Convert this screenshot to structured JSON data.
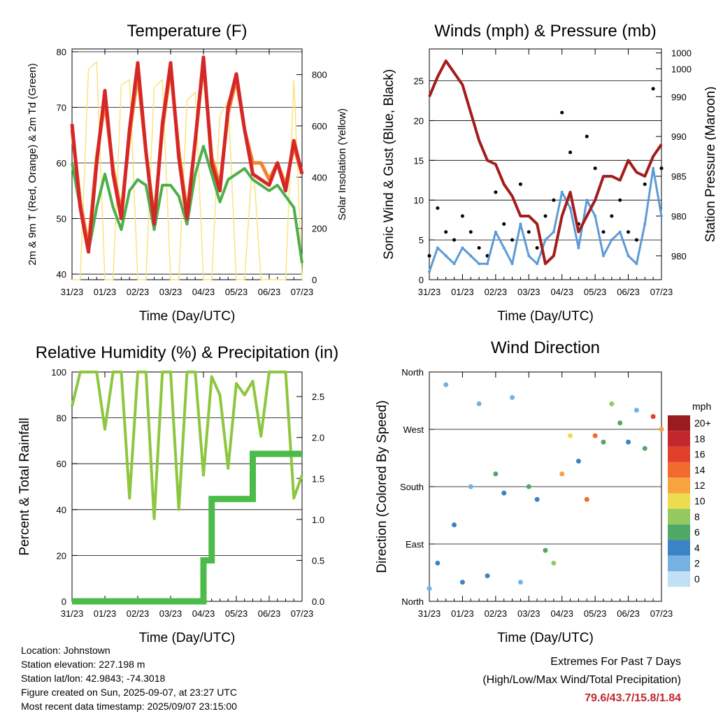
{
  "time_ticks": [
    "31/23",
    "01/23",
    "02/23",
    "03/23",
    "04/23",
    "05/23",
    "06/23",
    "07/23"
  ],
  "xlabel": "Time (Day/UTC)",
  "footer": {
    "location": "Location: Johnstown",
    "elevation": "Station elevation: 227.198 m",
    "latlon": "Station lat/lon: 42.9843; -74.3018",
    "created": "Figure created on Sun, 2025-09-07, at 23:27 UTC",
    "recent": "Most recent data timestamp: 2025/09/07 23:15:00"
  },
  "extremes": {
    "title": "Extremes For Past 7 Days",
    "subtitle": "(High/Low/Max Wind/Total Precipitation)",
    "values": "79.6/43.7/15.8/1.84"
  },
  "colors": {
    "red": "#d62728",
    "orange": "#f5822a",
    "green": "#4daf4a",
    "yellow": "#f7e47a",
    "blue": "#5b9bd5",
    "maroon": "#a31d1d",
    "rh": "#8dc63f",
    "precip": "#4dbb4a"
  },
  "chart_data": [
    {
      "type": "line",
      "title": "Temperature (F)",
      "ylabel": "2m & 9m T (Red, Orange) & 2m Td (Green)",
      "y2label": "Solar Insolation (Yellow)",
      "ylim": [
        39,
        80.5
      ],
      "y2lim": [
        0,
        900
      ],
      "yticks": [
        "40",
        "50",
        "60",
        "70",
        "80"
      ],
      "y2ticks": [
        "0",
        "200",
        "400",
        "600",
        "800"
      ],
      "x": [
        0,
        0.25,
        0.5,
        0.75,
        1,
        1.25,
        1.5,
        1.75,
        2,
        2.25,
        2.5,
        2.75,
        3,
        3.25,
        3.5,
        3.75,
        4,
        4.25,
        4.5,
        4.75,
        5,
        5.25,
        5.5,
        5.75,
        6,
        6.25,
        6.5,
        6.75,
        7
      ],
      "series": [
        {
          "name": "2m T",
          "color": "red",
          "values": [
            67,
            52,
            44,
            60,
            73,
            58,
            50,
            66,
            78,
            62,
            49,
            67,
            78,
            61,
            50,
            64,
            79,
            60,
            55,
            70,
            76,
            66,
            58,
            57,
            56,
            60,
            55,
            64,
            58
          ]
        },
        {
          "name": "9m T",
          "color": "orange",
          "values": [
            66,
            53,
            45,
            61,
            71,
            59,
            51,
            65,
            76,
            62,
            50,
            66,
            77,
            62,
            51,
            64,
            78,
            61,
            56,
            69,
            75,
            66,
            60,
            60,
            57,
            60,
            56,
            63,
            58
          ]
        },
        {
          "name": "2m Td",
          "color": "green",
          "values": [
            60,
            52,
            44,
            52,
            58,
            52,
            48,
            55,
            57,
            56,
            48,
            56,
            56,
            54,
            49,
            58,
            63,
            58,
            53,
            57,
            58,
            59,
            57,
            56,
            55,
            56,
            54,
            52,
            42
          ]
        },
        {
          "name": "Solar",
          "color": "yellow",
          "axis": "y2",
          "values": [
            0,
            0,
            820,
            850,
            0,
            0,
            760,
            780,
            0,
            0,
            750,
            780,
            0,
            0,
            700,
            730,
            0,
            0,
            640,
            700,
            0,
            0,
            480,
            0,
            0,
            0,
            0,
            780,
            0
          ]
        }
      ]
    },
    {
      "type": "scatter",
      "title": "Winds (mph) & Pressure (mb)",
      "ylabel": "Sonic Wind & Gust (Blue, Black)",
      "y2label": "Station Pressure (Maroon)",
      "ylim": [
        0,
        29
      ],
      "yticks": [
        "0",
        "5",
        "10",
        "15",
        "20",
        "25"
      ],
      "y2ticks": [
        "980",
        "980",
        "985",
        "990",
        "990",
        "1000",
        "1000"
      ],
      "x": [
        0,
        0.25,
        0.5,
        0.75,
        1,
        1.25,
        1.5,
        1.75,
        2,
        2.25,
        2.5,
        2.75,
        3,
        3.25,
        3.5,
        3.75,
        4,
        4.25,
        4.5,
        4.75,
        5,
        5.25,
        5.5,
        5.75,
        6,
        6.25,
        6.5,
        6.75,
        7
      ],
      "series": [
        {
          "name": "Gust",
          "color": "black",
          "values": [
            3,
            9,
            6,
            5,
            8,
            6,
            4,
            3,
            11,
            7,
            5,
            12,
            6,
            4,
            8,
            10,
            21,
            16,
            7,
            18,
            14,
            6,
            8,
            10,
            6,
            5,
            12,
            24,
            14
          ]
        },
        {
          "name": "Wind",
          "color": "blue",
          "values": [
            1,
            4,
            3,
            2,
            4,
            3,
            2,
            2,
            6,
            4,
            2,
            7,
            3,
            2,
            5,
            6,
            11,
            9,
            4,
            10,
            8,
            3,
            5,
            6,
            3,
            2,
            7,
            14,
            8
          ]
        },
        {
          "name": "Pressure",
          "color": "maroon",
          "values": [
            23,
            25.5,
            27.5,
            26,
            24.5,
            21,
            17.5,
            15,
            14.5,
            12,
            10.5,
            8,
            8,
            7,
            2,
            3,
            8,
            11,
            6,
            8,
            10,
            13,
            13,
            12.5,
            15,
            13.5,
            13,
            15.5,
            17
          ]
        }
      ]
    },
    {
      "type": "line",
      "title": "Relative Humidity (%) & Precipitation (in)",
      "ylabel": "Percent & Total Rainfall",
      "ylim": [
        0,
        100
      ],
      "y2lim": [
        0,
        2.8
      ],
      "yticks": [
        "0",
        "20",
        "40",
        "60",
        "80",
        "100"
      ],
      "y2ticks": [
        "0.0",
        "0.5",
        "1.0",
        "1.5",
        "2.0",
        "2.5"
      ],
      "x": [
        0,
        0.25,
        0.5,
        0.75,
        1,
        1.25,
        1.5,
        1.75,
        2,
        2.25,
        2.5,
        2.75,
        3,
        3.25,
        3.5,
        3.75,
        4,
        4.25,
        4.5,
        4.75,
        5,
        5.25,
        5.5,
        5.75,
        6,
        6.25,
        6.5,
        6.75,
        7
      ],
      "series": [
        {
          "name": "RH",
          "color": "rh",
          "values": [
            85,
            100,
            100,
            100,
            75,
            100,
            100,
            45,
            100,
            100,
            36,
            100,
            100,
            40,
            100,
            100,
            55,
            98,
            90,
            58,
            95,
            90,
            96,
            72,
            100,
            100,
            100,
            45,
            55
          ]
        },
        {
          "name": "Precip",
          "color": "precip",
          "axis": "y2",
          "values": [
            0,
            0,
            0,
            0,
            0,
            0,
            0,
            0,
            0,
            0,
            0,
            0,
            0,
            0,
            0,
            0,
            0.5,
            1.25,
            1.25,
            1.25,
            1.25,
            1.25,
            1.8,
            1.8,
            1.8,
            1.8,
            1.8,
            1.8,
            1.8
          ]
        }
      ]
    },
    {
      "type": "scatter",
      "title": "Wind Direction",
      "ylabel": "Direction (Colored By Speed)",
      "ylim": [
        0,
        360
      ],
      "yticks": [
        "North",
        "East",
        "South",
        "West",
        "North"
      ],
      "legend_title": "mph",
      "legend_labels": [
        "20+",
        "18",
        "16",
        "14",
        "12",
        "10",
        "8",
        "6",
        "4",
        "2",
        "0"
      ],
      "legend_colors": [
        "#9b1c1f",
        "#c1272d",
        "#e0402c",
        "#f26a30",
        "#f9a340",
        "#eedc4f",
        "#93c95e",
        "#4fa866",
        "#3a83c4",
        "#75b2e1",
        "#bfe0f5"
      ],
      "x": [
        0,
        0.25,
        0.5,
        0.75,
        1,
        1.25,
        1.5,
        1.75,
        2,
        2.25,
        2.5,
        2.75,
        3,
        3.25,
        3.5,
        3.75,
        4,
        4.25,
        4.5,
        4.75,
        5,
        5.25,
        5.5,
        5.75,
        6,
        6.25,
        6.5,
        6.75,
        7
      ],
      "series": [
        {
          "name": "direction",
          "values": [
            20,
            60,
            340,
            120,
            30,
            180,
            310,
            40,
            200,
            170,
            320,
            30,
            180,
            160,
            80,
            60,
            200,
            260,
            220,
            160,
            260,
            250,
            310,
            280,
            250,
            300,
            240,
            290,
            270
          ],
          "speeds": [
            2,
            4,
            1,
            3,
            4,
            2,
            1,
            3,
            6,
            4,
            1,
            2,
            6,
            3,
            5,
            7,
            11,
            9,
            4,
            14,
            13,
            5,
            7,
            6,
            4,
            2,
            6,
            16,
            12
          ]
        }
      ]
    }
  ]
}
